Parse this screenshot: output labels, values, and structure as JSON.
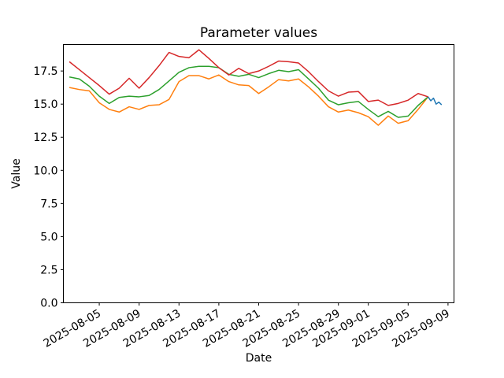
{
  "chart_data": {
    "type": "line",
    "title": "Parameter values",
    "xlabel": "Date",
    "ylabel": "Value",
    "grid": false,
    "legend_position": "none",
    "ylim": [
      0,
      19.5
    ],
    "xlim_days": [
      -0.6,
      38.6
    ],
    "x_dates": [
      "2025-08-02",
      "2025-08-03",
      "2025-08-04",
      "2025-08-05",
      "2025-08-06",
      "2025-08-07",
      "2025-08-08",
      "2025-08-09",
      "2025-08-10",
      "2025-08-11",
      "2025-08-12",
      "2025-08-13",
      "2025-08-14",
      "2025-08-15",
      "2025-08-16",
      "2025-08-17",
      "2025-08-18",
      "2025-08-19",
      "2025-08-20",
      "2025-08-21",
      "2025-08-22",
      "2025-08-23",
      "2025-08-24",
      "2025-08-25",
      "2025-08-26",
      "2025-08-27",
      "2025-08-28",
      "2025-08-29",
      "2025-08-30",
      "2025-08-31",
      "2025-09-01",
      "2025-09-02",
      "2025-09-03",
      "2025-09-04",
      "2025-09-05",
      "2025-09-06",
      "2025-09-07"
    ],
    "series": [
      {
        "name": "series-orange",
        "color": "#ff7f0e",
        "values": [
          16.25,
          16.1,
          16.0,
          15.1,
          14.6,
          14.4,
          14.8,
          14.6,
          14.9,
          14.95,
          15.35,
          16.7,
          17.15,
          17.15,
          16.9,
          17.2,
          16.7,
          16.45,
          16.4,
          15.8,
          16.3,
          16.85,
          16.75,
          16.9,
          16.3,
          15.6,
          14.8,
          14.4,
          14.55,
          14.35,
          14.05,
          13.4,
          14.1,
          13.55,
          13.75,
          14.6,
          15.55
        ]
      },
      {
        "name": "series-green",
        "color": "#2ca02c",
        "values": [
          17.05,
          16.9,
          16.35,
          15.6,
          15.05,
          15.5,
          15.6,
          15.55,
          15.65,
          16.1,
          16.75,
          17.4,
          17.75,
          17.85,
          17.85,
          17.75,
          17.25,
          17.1,
          17.25,
          17.0,
          17.3,
          17.55,
          17.45,
          17.6,
          16.9,
          16.2,
          15.3,
          14.95,
          15.1,
          15.2,
          14.6,
          14.05,
          14.45,
          14.0,
          14.1,
          14.9,
          15.55
        ]
      },
      {
        "name": "series-red",
        "color": "#d62728",
        "values": [
          18.2,
          17.6,
          17.0,
          16.4,
          15.75,
          16.2,
          16.95,
          16.2,
          17.0,
          17.9,
          18.9,
          18.6,
          18.5,
          19.1,
          18.45,
          17.75,
          17.2,
          17.7,
          17.3,
          17.5,
          17.85,
          18.25,
          18.2,
          18.1,
          17.45,
          16.7,
          16.0,
          15.6,
          15.9,
          15.95,
          15.2,
          15.3,
          14.9,
          15.05,
          15.3,
          15.8,
          15.55
        ]
      },
      {
        "name": "series-blue",
        "color": "#1f77b4",
        "day_offsets": [
          36.0,
          36.27,
          36.54,
          36.81,
          37.08,
          37.36
        ],
        "values": [
          15.55,
          15.25,
          15.45,
          15.0,
          15.15,
          14.95
        ]
      }
    ],
    "xticks": {
      "day_offsets": [
        3,
        7,
        11,
        15,
        19,
        23,
        27,
        30,
        34,
        38
      ],
      "labels": [
        "2025-08-05",
        "2025-08-09",
        "2025-08-13",
        "2025-08-17",
        "2025-08-21",
        "2025-08-25",
        "2025-08-29",
        "2025-09-01",
        "2025-09-05",
        "2025-09-09"
      ]
    },
    "yticks": {
      "values": [
        0,
        2.5,
        5,
        7.5,
        10,
        12.5,
        15,
        17.5
      ],
      "labels": [
        "0.0",
        "2.5",
        "5.0",
        "7.5",
        "10.0",
        "12.5",
        "15.0",
        "17.5"
      ]
    }
  }
}
